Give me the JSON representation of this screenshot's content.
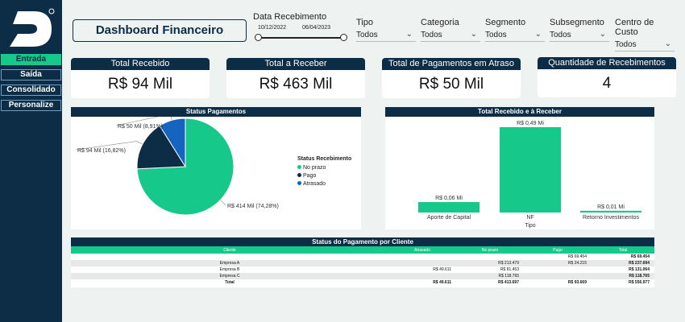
{
  "sidebar": {
    "nav": [
      {
        "label": "Entrada"
      },
      {
        "label": "Saída"
      },
      {
        "label": "Consolidado"
      },
      {
        "label": "Personalize"
      }
    ]
  },
  "header": {
    "title": "Dashboard Financeiro",
    "date_filter": {
      "label": "Data Recebimento",
      "start": "10/12/2022",
      "end": "06/04/2023"
    },
    "filters": [
      {
        "label": "Tipo",
        "value": "Todos"
      },
      {
        "label": "Categoria",
        "value": "Todos"
      },
      {
        "label": "Segmento",
        "value": "Todos"
      },
      {
        "label": "Subsegmento",
        "value": "Todos"
      },
      {
        "label": "Centro de Custo",
        "value": "Todos"
      }
    ]
  },
  "kpis": [
    {
      "label": "Total Recebido",
      "value": "R$ 94 Mil"
    },
    {
      "label": "Total a Receber",
      "value": "R$ 463 Mil"
    },
    {
      "label": "Total de Pagamentos em Atraso",
      "value": "R$ 50 Mil"
    },
    {
      "label": "Quantidade de Recebimentos",
      "value": "4"
    }
  ],
  "colors": {
    "navy": "#0d2c45",
    "green": "#16c98a",
    "blue": "#1565c0"
  },
  "chart_data": [
    {
      "type": "pie",
      "title": "Status Pagamentos",
      "legend_title": "Status Recebimento",
      "legend_position": "right",
      "slices": [
        {
          "name": "No prazo",
          "label": "R$ 414 Mil (74,28%)",
          "value": 74.28,
          "color": "#16c98a"
        },
        {
          "name": "Pago",
          "label": "R$ 94 Mil (16,82%)",
          "value": 16.82,
          "color": "#0d2c45"
        },
        {
          "name": "Atrasado",
          "label": "R$ 50 Mil (8,91%)",
          "value": 8.91,
          "color": "#1565c0"
        }
      ]
    },
    {
      "type": "bar",
      "title": "Total Recebido e à Receber",
      "xlabel": "Tipo",
      "categories": [
        "Aporte de Capital",
        "NF",
        "Retorno Investimentos"
      ],
      "values": [
        0.06,
        0.49,
        0.01
      ],
      "data_labels": [
        "R$ 0,06 Mi",
        "R$ 0,49 Mi",
        "R$ 0,01 Mi"
      ],
      "ylim": [
        0,
        0.49
      ],
      "color": "#16c98a"
    }
  ],
  "table": {
    "title": "Status do Pagamento por Cliente",
    "columns": [
      "Cliente",
      "Atrasado",
      "No prazo",
      "Pago",
      "Total"
    ],
    "rows": [
      [
        "",
        "",
        "",
        "R$ 69.454",
        "R$ 69.454"
      ],
      [
        "Empresa A",
        "",
        "R$ 213.479",
        "R$ 24.215",
        "R$ 237.694"
      ],
      [
        "Empresa B",
        "R$ 49.611",
        "R$ 81.453",
        "",
        "R$ 131.064"
      ],
      [
        "Empresa C",
        "",
        "R$ 118.765",
        "",
        "R$ 118.765"
      ]
    ],
    "total": [
      "Total",
      "R$ 49.611",
      "R$ 413.697",
      "R$ 93.669",
      "R$ 556.977"
    ]
  }
}
